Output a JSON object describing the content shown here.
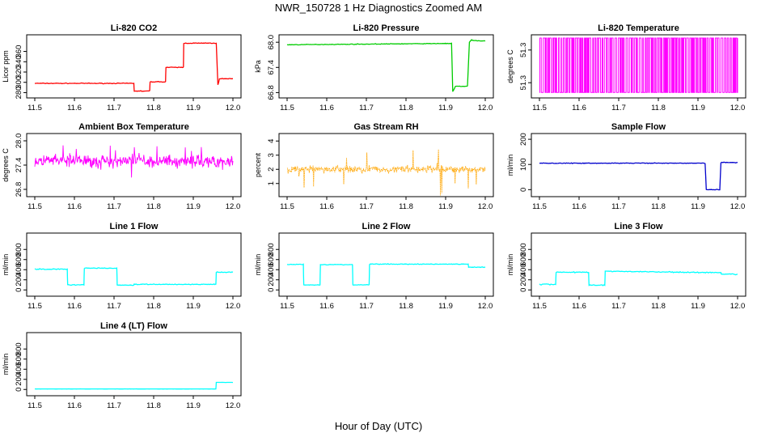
{
  "figure": {
    "title": "NWR_150728  1 Hz Diagnostics Zoomed AM",
    "xlabel": "Hour of Day (UTC)"
  },
  "chart_data": [
    {
      "type": "line",
      "title": "Li-820 CO2",
      "ylabel": "Licor ppm",
      "color": "#ff0000",
      "xlim": [
        11.5,
        12.0
      ],
      "ylim": [
        276,
        386
      ],
      "xticks": [
        "11.5",
        "11.6",
        "11.7",
        "11.8",
        "11.9",
        "12.0"
      ],
      "yticks": [
        280,
        300,
        320,
        340,
        360
      ],
      "noise": 1,
      "x": [
        11.5,
        11.75,
        11.751,
        11.79,
        11.791,
        11.83,
        11.831,
        11.875,
        11.876,
        11.958,
        11.962,
        11.966,
        12.0
      ],
      "y": [
        298,
        298,
        283,
        283,
        301,
        301,
        329,
        329,
        376,
        376,
        295,
        307,
        307
      ]
    },
    {
      "type": "line",
      "title": "Li-820 Pressure",
      "ylabel": "kPa",
      "color": "#00cc00",
      "xlim": [
        11.5,
        12.0
      ],
      "ylim": [
        66.75,
        68.1
      ],
      "xticks": [
        "11.5",
        "11.6",
        "11.7",
        "11.8",
        "11.9",
        "12.0"
      ],
      "yticks": [
        66.8,
        67.4,
        68.0
      ],
      "noise": 0.01,
      "x": [
        11.5,
        11.9,
        11.915,
        11.918,
        11.925,
        11.955,
        11.96,
        11.965,
        11.97,
        12.0
      ],
      "y": [
        67.94,
        67.97,
        67.97,
        66.82,
        66.95,
        66.95,
        68.0,
        68.05,
        68.04,
        68.03
      ]
    },
    {
      "type": "line",
      "title": "Li-820 Temperature",
      "ylabel": "degrees C",
      "color": "#ff00ff",
      "xlim": [
        11.5,
        12.0
      ],
      "ylim": [
        51.2495,
        51.2755
      ],
      "xticks": [
        "11.5",
        "11.6",
        "11.7",
        "11.8",
        "11.9",
        "12.0"
      ],
      "yticks": [
        51.255,
        51.27
      ],
      "render": "toggle",
      "levels": [
        51.2505,
        51.2755
      ]
    },
    {
      "type": "line",
      "title": "Ambient Box Temperature",
      "ylabel": "degrees C",
      "color": "#ff00ff",
      "xlim": [
        11.5,
        12.0
      ],
      "ylim": [
        26.7,
        28.1
      ],
      "xticks": [
        "11.5",
        "11.6",
        "11.7",
        "11.8",
        "11.9",
        "12.0"
      ],
      "yticks": [
        26.8,
        27.4,
        28.0
      ],
      "render": "noise",
      "mean": 27.5,
      "noise": 0.22,
      "spikes": 0.4
    },
    {
      "type": "scatter",
      "title": "Gas Stream RH",
      "ylabel": "percent",
      "color": "#ffa500",
      "xlim": [
        11.5,
        12.0
      ],
      "ylim": [
        0.3,
        4.3
      ],
      "xticks": [
        "11.5",
        "11.6",
        "11.7",
        "11.8",
        "11.9",
        "12.0"
      ],
      "yticks": [
        1,
        2,
        3,
        4
      ],
      "render": "noise",
      "mean": 2.0,
      "noise": 0.35,
      "spikes": 1.7
    },
    {
      "type": "line",
      "title": "Sample Flow",
      "ylabel": "ml/min",
      "color": "#0000cc",
      "xlim": [
        11.5,
        12.0
      ],
      "ylim": [
        -15,
        210
      ],
      "xticks": [
        "11.5",
        "11.6",
        "11.7",
        "11.8",
        "11.9",
        "12.0"
      ],
      "yticks": [
        0,
        100,
        200
      ],
      "noise": 2,
      "x": [
        11.5,
        11.918,
        11.921,
        11.955,
        11.958,
        12.0
      ],
      "y": [
        105,
        105,
        0,
        0,
        108,
        108
      ]
    },
    {
      "type": "line",
      "title": "Line 1 Flow",
      "ylabel": "ml/min",
      "color": "#00ffff",
      "xlim": [
        11.5,
        12.0
      ],
      "ylim": [
        -60,
        1060
      ],
      "xticks": [
        "11.5",
        "11.6",
        "11.7",
        "11.8",
        "11.9",
        "12.0"
      ],
      "yticks": [
        0,
        200,
        400,
        600,
        800
      ],
      "noise": 12,
      "x": [
        11.5,
        11.582,
        11.583,
        11.624,
        11.625,
        11.707,
        11.708,
        11.75,
        11.751,
        11.957,
        11.958,
        12.0
      ],
      "y": [
        410,
        410,
        100,
        100,
        430,
        430,
        95,
        95,
        110,
        110,
        350,
        350
      ]
    },
    {
      "type": "line",
      "title": "Line 2 Flow",
      "ylabel": "ml/min",
      "color": "#00ffff",
      "xlim": [
        11.5,
        12.0
      ],
      "ylim": [
        -60,
        1060
      ],
      "xticks": [
        "11.5",
        "11.6",
        "11.7",
        "11.8",
        "11.9",
        "12.0"
      ],
      "yticks": [
        0,
        200,
        400,
        600,
        800
      ],
      "noise": 10,
      "x": [
        11.5,
        11.541,
        11.542,
        11.583,
        11.584,
        11.665,
        11.666,
        11.707,
        11.708,
        11.957,
        11.958,
        12.0
      ],
      "y": [
        505,
        505,
        100,
        100,
        500,
        500,
        100,
        100,
        510,
        510,
        450,
        450
      ]
    },
    {
      "type": "line",
      "title": "Line 3 Flow",
      "ylabel": "ml/min",
      "color": "#00ffff",
      "xlim": [
        11.5,
        12.0
      ],
      "ylim": [
        -60,
        1060
      ],
      "xticks": [
        "11.5",
        "11.6",
        "11.7",
        "11.8",
        "11.9",
        "12.0"
      ],
      "yticks": [
        0,
        200,
        400,
        600,
        800
      ],
      "noise": 14,
      "x": [
        11.5,
        11.541,
        11.542,
        11.624,
        11.625,
        11.665,
        11.666,
        11.958,
        11.959,
        12.0
      ],
      "y": [
        110,
        110,
        350,
        350,
        95,
        95,
        370,
        340,
        310,
        310
      ]
    },
    {
      "type": "line",
      "title": "Line 4 (LT) Flow",
      "ylabel": "ml/min",
      "color": "#00ffff",
      "xlim": [
        11.5,
        12.0
      ],
      "ylim": [
        -60,
        1060
      ],
      "xticks": [
        "11.5",
        "11.6",
        "11.7",
        "11.8",
        "11.9",
        "12.0"
      ],
      "yticks": [
        0,
        200,
        400,
        600,
        800
      ],
      "noise": 2,
      "x": [
        11.5,
        11.957,
        11.958,
        12.0
      ],
      "y": [
        10,
        10,
        140,
        140
      ]
    }
  ]
}
